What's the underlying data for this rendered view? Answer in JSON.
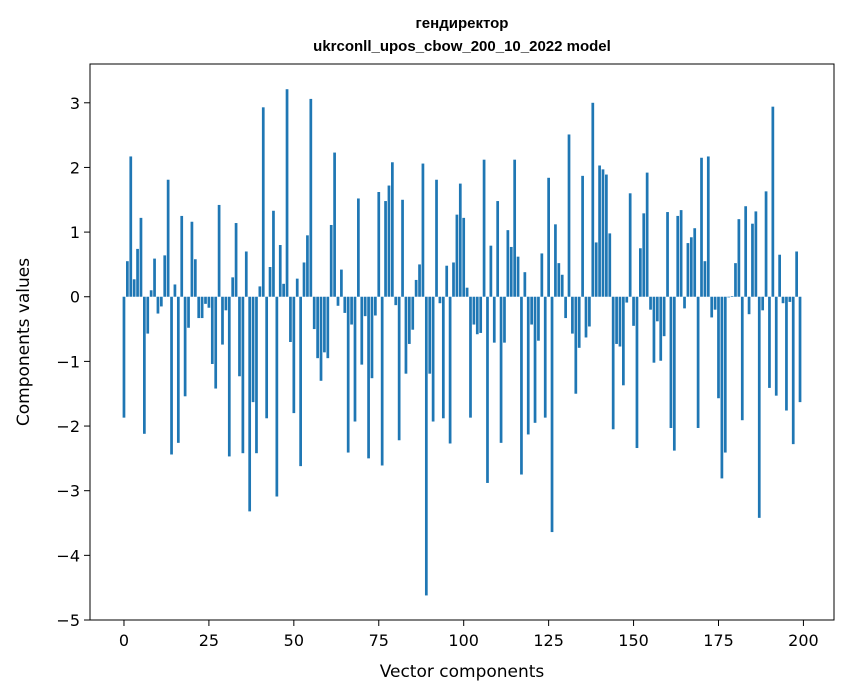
{
  "chart_data": {
    "type": "bar",
    "title_line1": "гендиректор",
    "title_line2": "ukrconll_upos_cbow_200_10_2022 model",
    "xlabel": "Vector components",
    "ylabel": "Components values",
    "xlim": [
      -10,
      209
    ],
    "ylim": [
      -5,
      3.6
    ],
    "xticks": [
      0,
      25,
      50,
      75,
      100,
      125,
      150,
      175,
      200
    ],
    "yticks": [
      -5,
      -4,
      -3,
      -2,
      -1,
      0,
      1,
      2,
      3
    ],
    "ytick_labels": [
      "−5",
      "−4",
      "−3",
      "−2",
      "−1",
      "0",
      "1",
      "2",
      "3"
    ],
    "grid": false,
    "bar_color": "#1f77b4",
    "x": [
      0,
      1,
      2,
      3,
      4,
      5,
      6,
      7,
      8,
      9,
      10,
      11,
      12,
      13,
      14,
      15,
      16,
      17,
      18,
      19,
      20,
      21,
      22,
      23,
      24,
      25,
      26,
      27,
      28,
      29,
      30,
      31,
      32,
      33,
      34,
      35,
      36,
      37,
      38,
      39,
      40,
      41,
      42,
      43,
      44,
      45,
      46,
      47,
      48,
      49,
      50,
      51,
      52,
      53,
      54,
      55,
      56,
      57,
      58,
      59,
      60,
      61,
      62,
      63,
      64,
      65,
      66,
      67,
      68,
      69,
      70,
      71,
      72,
      73,
      74,
      75,
      76,
      77,
      78,
      79,
      80,
      81,
      82,
      83,
      84,
      85,
      86,
      87,
      88,
      89,
      90,
      91,
      92,
      93,
      94,
      95,
      96,
      97,
      98,
      99,
      100,
      101,
      102,
      103,
      104,
      105,
      106,
      107,
      108,
      109,
      110,
      111,
      112,
      113,
      114,
      115,
      116,
      117,
      118,
      119,
      120,
      121,
      122,
      123,
      124,
      125,
      126,
      127,
      128,
      129,
      130,
      131,
      132,
      133,
      134,
      135,
      136,
      137,
      138,
      139,
      140,
      141,
      142,
      143,
      144,
      145,
      146,
      147,
      148,
      149,
      150,
      151,
      152,
      153,
      154,
      155,
      156,
      157,
      158,
      159,
      160,
      161,
      162,
      163,
      164,
      165,
      166,
      167,
      168,
      169,
      170,
      171,
      172,
      173,
      174,
      175,
      176,
      177,
      178,
      179,
      180,
      181,
      182,
      183,
      184,
      185,
      186,
      187,
      188,
      189,
      190,
      191,
      192,
      193,
      194,
      195,
      196,
      197,
      198,
      199
    ],
    "values": [
      -1.87,
      0.55,
      2.17,
      0.27,
      0.74,
      1.22,
      -2.12,
      -0.57,
      0.1,
      0.59,
      -0.26,
      -0.15,
      0.64,
      1.81,
      -2.44,
      0.19,
      -2.26,
      1.25,
      -1.54,
      -0.48,
      1.16,
      0.58,
      -0.33,
      -0.33,
      -0.11,
      -0.17,
      -1.04,
      -1.42,
      1.42,
      -0.74,
      -0.21,
      -2.47,
      0.3,
      1.14,
      -1.23,
      -2.42,
      0.7,
      -3.32,
      -1.63,
      -2.42,
      0.16,
      2.93,
      -1.88,
      0.46,
      1.33,
      -3.09,
      0.8,
      0.2,
      3.21,
      -0.7,
      -1.8,
      0.28,
      -2.62,
      0.53,
      0.95,
      3.06,
      -0.5,
      -0.95,
      -1.3,
      -0.86,
      -0.95,
      1.11,
      2.23,
      -0.14,
      0.42,
      -0.25,
      -2.41,
      -0.43,
      -1.93,
      1.52,
      -1.05,
      -0.3,
      -2.5,
      -1.26,
      -0.29,
      1.62,
      -2.61,
      1.48,
      1.72,
      2.08,
      -0.13,
      -2.22,
      1.5,
      -1.19,
      -0.73,
      -0.51,
      0.26,
      0.5,
      2.06,
      -4.62,
      -1.19,
      -1.93,
      1.81,
      -0.1,
      -1.88,
      0.48,
      -2.27,
      0.53,
      1.27,
      1.75,
      1.22,
      0.14,
      -1.87,
      -0.43,
      -0.58,
      -0.56,
      2.12,
      -2.88,
      0.79,
      -0.71,
      1.48,
      -2.26,
      -0.71,
      1.03,
      0.77,
      2.12,
      0.62,
      -2.75,
      0.38,
      -2.13,
      -0.43,
      -1.95,
      -0.68,
      0.67,
      -1.87,
      1.84,
      -3.64,
      1.12,
      0.52,
      0.34,
      -0.33,
      2.51,
      -0.57,
      -1.5,
      -0.79,
      1.87,
      -0.63,
      -0.46,
      3.0,
      0.84,
      2.03,
      1.97,
      1.89,
      0.98,
      -2.05,
      -0.73,
      -0.77,
      -1.37,
      -0.09,
      1.6,
      -0.45,
      -2.34,
      0.75,
      1.29,
      1.92,
      -0.2,
      -1.02,
      -0.38,
      -0.99,
      -0.61,
      1.31,
      -2.03,
      -2.38,
      1.25,
      1.34,
      -0.18,
      0.83,
      0.92,
      1.06,
      -2.03,
      2.15,
      0.55,
      2.17,
      -0.32,
      -0.2,
      -1.57,
      -2.81,
      -2.41,
      -0.01,
      0.01,
      0.52,
      1.2,
      -1.91,
      1.4,
      -0.27,
      1.13,
      1.32,
      -3.42,
      -0.21,
      1.63,
      -1.41,
      2.94,
      -1.53,
      0.65,
      -0.1,
      -1.76,
      -0.08,
      -2.28,
      0.7,
      -1.63
    ]
  }
}
